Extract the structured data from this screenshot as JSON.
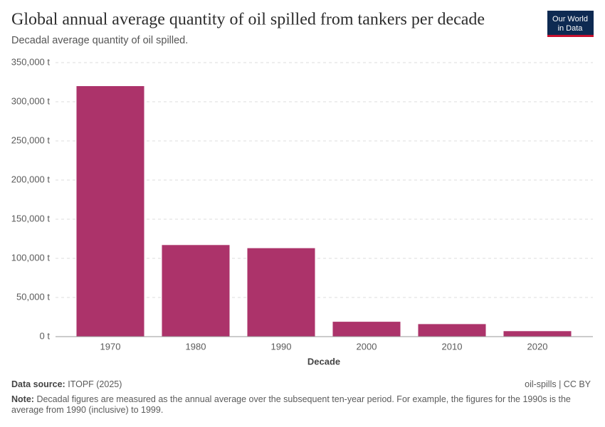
{
  "chart_data": {
    "type": "bar",
    "title": "Global annual average quantity of oil spilled from tankers per decade",
    "subtitle": "Decadal average quantity of oil spilled.",
    "logo": [
      "Our World",
      "in Data"
    ],
    "x_label": "Decade",
    "categories": [
      "1970",
      "1980",
      "1990",
      "2000",
      "2010",
      "2020"
    ],
    "values": [
      320000,
      117000,
      113000,
      19000,
      16000,
      7000
    ],
    "color": "#ac336a",
    "ylim": [
      0,
      350000
    ],
    "yticks": [
      {
        "value": 0,
        "label": "0 t"
      },
      {
        "value": 50000,
        "label": "50,000 t"
      },
      {
        "value": 100000,
        "label": "100,000 t"
      },
      {
        "value": 150000,
        "label": "150,000 t"
      },
      {
        "value": 200000,
        "label": "200,000 t"
      },
      {
        "value": 250000,
        "label": "250,000 t"
      },
      {
        "value": 300000,
        "label": "300,000 t"
      },
      {
        "value": 350000,
        "label": "350,000 t"
      }
    ],
    "grid": true,
    "source_label": "Data source:",
    "source": "ITOPF (2025)",
    "license": "oil-spills | CC BY",
    "note_label": "Note:",
    "note": "Decadal figures are measured as the annual average over the subsequent ten-year period. For example, the figures for the 1990s is the average from 1990 (inclusive) to 1999."
  }
}
